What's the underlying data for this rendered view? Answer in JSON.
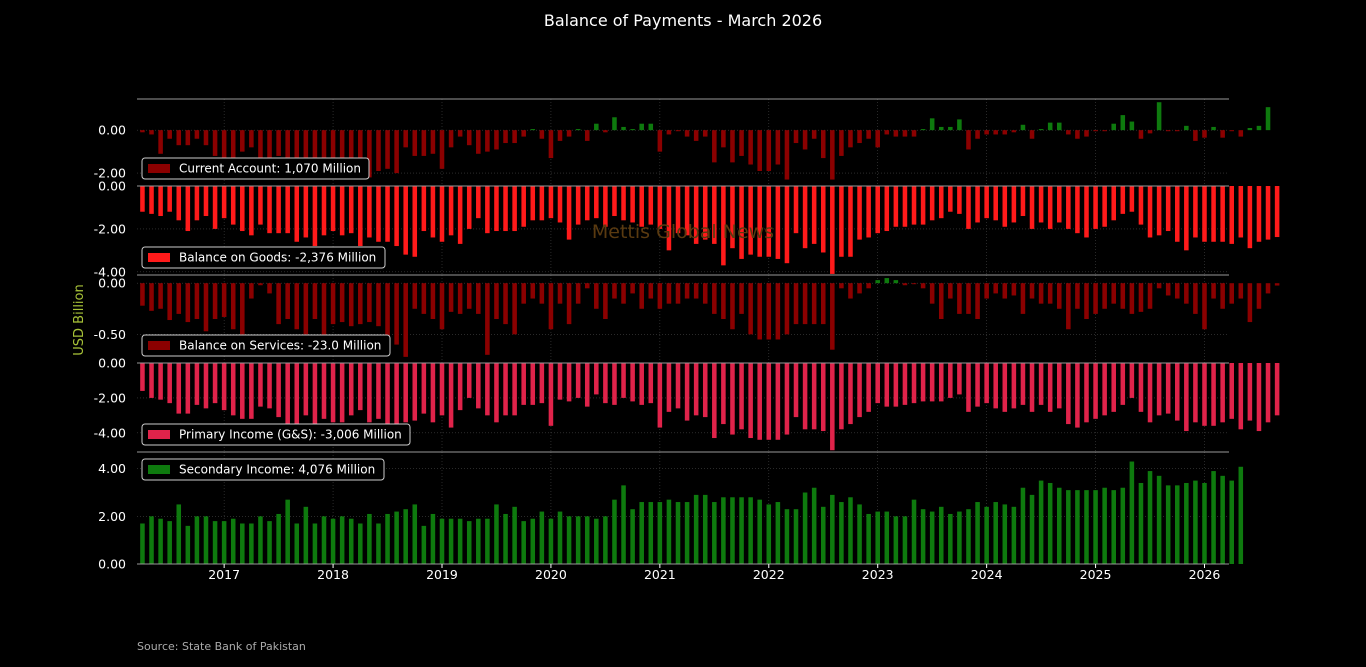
{
  "title": "Balance of Payments - March 2026",
  "ylabel": "USD Billion",
  "watermark": "Mettis Global News",
  "source": "Source: State Bank of Pakistan",
  "colors": {
    "background": "#000000",
    "current_account_neg": "#8b0000",
    "current_account_pos": "#0e7a0e",
    "goods": "#ff1a1a",
    "services_neg": "#8b0000",
    "services_pos": "#0e7a0e",
    "primary_income": "#e0234a",
    "secondary_income": "#0e7a0e",
    "ylabel": "#a7c238",
    "watermark": "#5a3a10",
    "source": "#aaaaaa",
    "axis": "#999999",
    "grid": "#444444"
  },
  "chart_data": {
    "type": "bar",
    "start_month": "2016-04",
    "end_month": "2026-03",
    "x_ticks": [
      "2017",
      "2018",
      "2019",
      "2020",
      "2021",
      "2022",
      "2023",
      "2024",
      "2025",
      "2026"
    ],
    "legend_placement": "lower-left",
    "grid": true,
    "panels": [
      {
        "id": "current_account",
        "legend": "Current Account: 1,070 Million",
        "color_key": "current_account",
        "ylim": [
          -2.6,
          1.45
        ],
        "yticks": [
          "0.00",
          "-2.00"
        ],
        "ytick_values": [
          0,
          -2
        ],
        "values": [
          -0.1,
          -0.2,
          -1.1,
          -0.4,
          -0.7,
          -0.7,
          -0.4,
          -0.7,
          -1.2,
          -1.3,
          -1.5,
          -1.0,
          -0.8,
          -1.6,
          -1.6,
          -1.2,
          -1.7,
          -1.5,
          -1.6,
          -1.6,
          -1.5,
          -1.8,
          -1.6,
          -1.7,
          -1.4,
          -2.2,
          -1.9,
          -1.8,
          -2.0,
          -0.8,
          -1.2,
          -1.2,
          -1.1,
          -1.8,
          -0.8,
          -0.3,
          -0.7,
          -1.1,
          -1.0,
          -0.9,
          -0.6,
          -0.6,
          -0.3,
          0.05,
          -0.4,
          -1.3,
          -0.5,
          -0.3,
          0.05,
          -0.5,
          0.3,
          -0.1,
          0.6,
          0.15,
          0.05,
          0.3,
          0.3,
          -1.0,
          -0.2,
          -0.05,
          -0.3,
          -0.5,
          -0.3,
          -1.5,
          -0.8,
          -1.5,
          -1.2,
          -1.6,
          -1.9,
          -1.9,
          -1.6,
          -2.3,
          -0.6,
          -0.9,
          -0.4,
          -1.3,
          -2.3,
          -1.2,
          -0.8,
          -0.6,
          -0.4,
          -0.8,
          -0.2,
          -0.3,
          -0.3,
          -0.3,
          0.05,
          0.55,
          0.15,
          0.15,
          0.5,
          -0.9,
          -0.4,
          -0.2,
          -0.2,
          -0.2,
          -0.1,
          0.25,
          -0.4,
          0.05,
          0.35,
          0.35,
          -0.2,
          -0.4,
          -0.3,
          -0.05,
          -0.05,
          0.3,
          0.7,
          0.4,
          -0.4,
          -0.15,
          1.3,
          -0.05,
          -0.05,
          0.2,
          -0.5,
          -0.35,
          0.15,
          -0.35,
          -0.05,
          -0.3,
          0.1,
          0.2,
          1.07
        ]
      },
      {
        "id": "goods",
        "legend": "Balance on Goods: -2,376 Million",
        "color_key": "goods",
        "ylim": [
          -4.15,
          0.0
        ],
        "yticks": [
          "0.00",
          "-2.00",
          "-4.00"
        ],
        "ytick_values": [
          0,
          -2,
          -4
        ],
        "values": [
          -1.2,
          -1.3,
          -1.4,
          -1.2,
          -1.6,
          -2.1,
          -1.6,
          -1.4,
          -2.0,
          -1.5,
          -1.8,
          -2.1,
          -2.3,
          -1.8,
          -2.2,
          -2.2,
          -2.2,
          -2.6,
          -2.4,
          -2.8,
          -2.3,
          -2.1,
          -2.3,
          -2.2,
          -2.8,
          -2.4,
          -2.6,
          -2.6,
          -2.8,
          -3.2,
          -3.3,
          -2.1,
          -2.4,
          -2.6,
          -2.3,
          -2.7,
          -2.0,
          -1.5,
          -2.2,
          -2.1,
          -2.1,
          -2.1,
          -1.9,
          -1.6,
          -1.6,
          -1.5,
          -1.7,
          -2.5,
          -1.8,
          -1.6,
          -1.5,
          -1.9,
          -1.4,
          -1.6,
          -1.7,
          -1.9,
          -1.8,
          -2.0,
          -3.0,
          -2.2,
          -2.3,
          -2.7,
          -2.5,
          -2.7,
          -3.7,
          -2.9,
          -3.4,
          -3.2,
          -3.3,
          -3.3,
          -3.4,
          -3.6,
          -2.2,
          -2.9,
          -2.7,
          -3.1,
          -4.1,
          -3.3,
          -3.3,
          -2.5,
          -2.4,
          -2.2,
          -2.1,
          -1.9,
          -1.9,
          -1.8,
          -1.8,
          -1.6,
          -1.5,
          -1.2,
          -1.3,
          -2.0,
          -1.7,
          -1.5,
          -1.6,
          -1.9,
          -1.7,
          -1.4,
          -2.0,
          -1.7,
          -2.0,
          -1.7,
          -2.0,
          -2.2,
          -2.4,
          -2.0,
          -1.9,
          -1.6,
          -1.3,
          -1.2,
          -1.8,
          -2.4,
          -2.3,
          -2.1,
          -2.6,
          -3.0,
          -2.4,
          -2.6,
          -2.6,
          -2.6,
          -2.7,
          -2.4,
          -2.9,
          -2.6,
          -2.5,
          -2.38
        ]
      },
      {
        "id": "services",
        "legend": "Balance on Services: -23.0 Million",
        "color_key": "services",
        "ylim": [
          -0.78,
          0.08
        ],
        "yticks": [
          "0.00",
          "-0.50"
        ],
        "ytick_values": [
          0,
          -0.5
        ],
        "values": [
          -0.22,
          -0.27,
          -0.25,
          -0.36,
          -0.3,
          -0.38,
          -0.35,
          -0.47,
          -0.35,
          -0.33,
          -0.45,
          -0.5,
          -0.15,
          -0.02,
          -0.1,
          -0.4,
          -0.35,
          -0.45,
          -0.5,
          -0.35,
          -0.55,
          -0.4,
          -0.38,
          -0.42,
          -0.4,
          -0.38,
          -0.42,
          -0.55,
          -0.6,
          -0.72,
          -0.25,
          -0.3,
          -0.35,
          -0.45,
          -0.28,
          -0.3,
          -0.25,
          -0.3,
          -0.7,
          -0.35,
          -0.4,
          -0.5,
          -0.2,
          -0.15,
          -0.2,
          -0.45,
          -0.2,
          -0.4,
          -0.2,
          -0.05,
          -0.25,
          -0.35,
          -0.15,
          -0.2,
          -0.1,
          -0.25,
          -0.15,
          -0.25,
          -0.2,
          -0.2,
          -0.15,
          -0.15,
          -0.2,
          -0.3,
          -0.35,
          -0.45,
          -0.3,
          -0.5,
          -0.55,
          -0.55,
          -0.55,
          -0.5,
          -0.4,
          -0.4,
          -0.4,
          -0.4,
          -0.65,
          -0.05,
          -0.15,
          -0.1,
          -0.05,
          0.03,
          0.05,
          0.03,
          -0.02,
          -0.01,
          -0.05,
          -0.2,
          -0.35,
          -0.15,
          -0.3,
          -0.3,
          -0.35,
          -0.15,
          -0.1,
          -0.15,
          -0.12,
          -0.3,
          -0.15,
          -0.2,
          -0.2,
          -0.25,
          -0.45,
          -0.25,
          -0.35,
          -0.3,
          -0.25,
          -0.2,
          -0.25,
          -0.3,
          -0.28,
          -0.25,
          -0.05,
          -0.12,
          -0.15,
          -0.2,
          -0.3,
          -0.45,
          -0.15,
          -0.25,
          -0.2,
          -0.15,
          -0.38,
          -0.25,
          -0.1,
          -0.023
        ]
      },
      {
        "id": "primary_income",
        "legend": "Primary Income (G&S): -3,006 Million",
        "color_key": "primary_income",
        "ylim": [
          -5.1,
          0.0
        ],
        "yticks": [
          "0.00",
          "-2.00",
          "-4.00"
        ],
        "ytick_values": [
          0,
          -2,
          -4
        ],
        "values": [
          -1.6,
          -2.0,
          -2.1,
          -2.3,
          -2.9,
          -2.9,
          -2.4,
          -2.6,
          -2.3,
          -2.7,
          -3.0,
          -3.2,
          -3.2,
          -2.5,
          -2.6,
          -3.1,
          -3.6,
          -3.5,
          -3.0,
          -3.5,
          -3.2,
          -3.4,
          -3.4,
          -3.0,
          -2.7,
          -3.4,
          -3.2,
          -3.8,
          -3.8,
          -3.4,
          -3.3,
          -2.9,
          -3.4,
          -3.0,
          -3.7,
          -2.7,
          -2.0,
          -2.6,
          -3.0,
          -3.4,
          -3.0,
          -3.0,
          -2.4,
          -2.4,
          -2.3,
          -3.6,
          -2.1,
          -2.2,
          -2.0,
          -2.5,
          -1.8,
          -2.3,
          -2.4,
          -2.0,
          -2.2,
          -2.4,
          -2.3,
          -3.7,
          -2.8,
          -2.6,
          -3.3,
          -3.0,
          -3.1,
          -4.3,
          -3.5,
          -4.1,
          -3.8,
          -4.3,
          -4.4,
          -4.4,
          -4.4,
          -4.1,
          -3.1,
          -3.8,
          -3.8,
          -3.9,
          -5.0,
          -3.8,
          -3.5,
          -3.1,
          -2.8,
          -2.3,
          -2.5,
          -2.5,
          -2.4,
          -2.3,
          -2.2,
          -2.2,
          -2.2,
          -2.0,
          -1.8,
          -2.8,
          -2.5,
          -2.3,
          -2.6,
          -2.8,
          -2.6,
          -2.4,
          -2.8,
          -2.4,
          -2.8,
          -2.6,
          -3.5,
          -3.7,
          -3.4,
          -3.2,
          -3.0,
          -2.8,
          -2.4,
          -2.0,
          -2.8,
          -3.4,
          -3.0,
          -2.9,
          -3.3,
          -3.9,
          -3.4,
          -3.6,
          -3.6,
          -3.4,
          -3.2,
          -3.8,
          -3.3,
          -3.9,
          -3.4,
          -3.0
        ]
      },
      {
        "id": "secondary_income",
        "legend": "Secondary Income: 4,076 Million",
        "color_key": "secondary_income",
        "ylim": [
          0.0,
          4.7
        ],
        "yticks": [
          "4.00",
          "2.00",
          "0.00"
        ],
        "ytick_values": [
          4,
          2,
          0
        ],
        "values": [
          1.7,
          2.0,
          1.9,
          1.8,
          2.5,
          1.6,
          2.0,
          2.0,
          1.8,
          1.8,
          1.9,
          1.7,
          1.7,
          2.0,
          1.8,
          2.1,
          2.7,
          1.7,
          2.4,
          1.7,
          2.0,
          1.9,
          2.0,
          1.9,
          1.7,
          2.1,
          1.7,
          2.1,
          2.2,
          2.3,
          2.5,
          1.6,
          2.1,
          1.9,
          1.9,
          1.9,
          1.8,
          1.9,
          1.9,
          2.5,
          2.1,
          2.4,
          1.8,
          1.9,
          2.2,
          1.9,
          2.2,
          2.0,
          2.0,
          2.0,
          1.9,
          2.0,
          2.7,
          3.3,
          2.3,
          2.6,
          2.6,
          2.6,
          2.7,
          2.6,
          2.6,
          2.9,
          2.9,
          2.6,
          2.8,
          2.8,
          2.8,
          2.8,
          2.7,
          2.5,
          2.6,
          2.3,
          2.3,
          3.0,
          3.2,
          2.4,
          2.9,
          2.6,
          2.8,
          2.5,
          2.1,
          2.2,
          2.2,
          2.0,
          2.0,
          2.7,
          2.3,
          2.2,
          2.4,
          2.1,
          2.2,
          2.3,
          2.6,
          2.4,
          2.6,
          2.5,
          2.4,
          3.2,
          2.9,
          3.5,
          3.4,
          3.2,
          3.1,
          3.1,
          3.1,
          3.1,
          3.2,
          3.1,
          3.2,
          4.3,
          3.4,
          3.9,
          3.7,
          3.3,
          3.3,
          3.4,
          3.5,
          3.4,
          3.9,
          3.7,
          3.5,
          4.08
        ]
      }
    ]
  }
}
